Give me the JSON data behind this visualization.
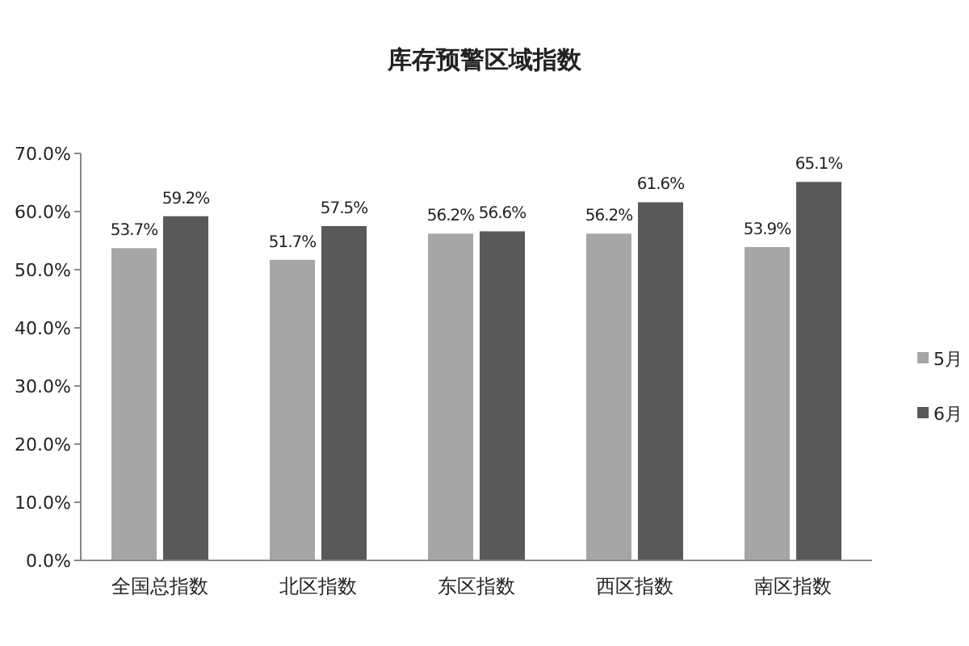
{
  "chart_data": {
    "type": "bar",
    "title": "库存预警区域指数",
    "categories": [
      "全国总指数",
      "北区指数",
      "东区指数",
      "西区指数",
      "南区指数"
    ],
    "series": [
      {
        "name": "5月",
        "color": "#a6a6a6",
        "values": [
          53.7,
          51.7,
          56.2,
          56.2,
          53.9
        ],
        "value_labels": [
          "53.7%",
          "51.7%",
          "56.2%",
          "56.2%",
          "53.9%"
        ]
      },
      {
        "name": "6月",
        "color": "#595959",
        "values": [
          59.2,
          57.5,
          56.6,
          61.6,
          65.1
        ],
        "value_labels": [
          "59.2%",
          "57.5%",
          "56.6%",
          "61.6%",
          "65.1%"
        ]
      }
    ],
    "ylim": [
      0,
      70
    ],
    "yticks": [
      {
        "value": 0,
        "label": "0.0%"
      },
      {
        "value": 10,
        "label": "10.0%"
      },
      {
        "value": 20,
        "label": "20.0%"
      },
      {
        "value": 30,
        "label": "30.0%"
      },
      {
        "value": 40,
        "label": "40.0%"
      },
      {
        "value": 50,
        "label": "50.0%"
      },
      {
        "value": 60,
        "label": "60.0%"
      },
      {
        "value": 70,
        "label": "70.0%"
      }
    ],
    "grid": false,
    "legend": "right"
  }
}
